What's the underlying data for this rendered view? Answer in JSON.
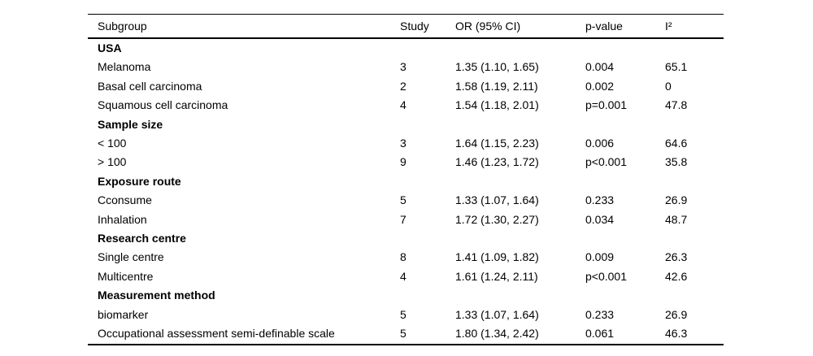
{
  "table": {
    "columns": [
      "Subgroup",
      "Study",
      "OR (95% CI)",
      "p-value",
      "I²"
    ],
    "rows": [
      {
        "style": "section",
        "cells": [
          "USA",
          "",
          "",
          "",
          ""
        ]
      },
      {
        "style": "data",
        "cells": [
          "Melanoma",
          "3",
          "1.35 (1.10, 1.65)",
          "0.004",
          "65.1"
        ]
      },
      {
        "style": "data",
        "cells": [
          "Basal cell carcinoma",
          "2",
          "1.58 (1.19, 2.11)",
          "0.002",
          "0"
        ]
      },
      {
        "style": "data",
        "cells": [
          "Squamous cell carcinoma",
          "4",
          "1.54 (1.18, 2.01)",
          "p=0.001",
          "47.8"
        ]
      },
      {
        "style": "section",
        "cells": [
          "Sample size",
          "",
          "",
          "",
          ""
        ]
      },
      {
        "style": "data",
        "cells": [
          "< 100",
          "3",
          "1.64 (1.15, 2.23)",
          "0.006",
          "64.6"
        ]
      },
      {
        "style": "data",
        "cells": [
          "> 100",
          "9",
          "1.46 (1.23, 1.72)",
          "p<0.001",
          "35.8"
        ]
      },
      {
        "style": "section",
        "cells": [
          "Exposure route",
          "",
          "",
          "",
          ""
        ]
      },
      {
        "style": "data",
        "cells": [
          "Cconsume",
          "5",
          "1.33 (1.07, 1.64)",
          "0.233",
          "26.9"
        ]
      },
      {
        "style": "data",
        "cells": [
          "Inhalation",
          "7",
          "1.72 (1.30, 2.27)",
          "0.034",
          "48.7"
        ]
      },
      {
        "style": "section",
        "cells": [
          "Research centre",
          "",
          "",
          "",
          ""
        ]
      },
      {
        "style": "data",
        "cells": [
          "Single centre",
          "8",
          "1.41 (1.09, 1.82)",
          "0.009",
          "26.3"
        ]
      },
      {
        "style": "data",
        "cells": [
          "Multicentre",
          "4",
          "1.61 (1.24, 2.11)",
          "p<0.001",
          "42.6"
        ]
      },
      {
        "style": "section",
        "cells": [
          "Measurement method",
          "",
          "",
          "",
          ""
        ]
      },
      {
        "style": "data",
        "cells": [
          "biomarker",
          "5",
          "1.33 (1.07, 1.64)",
          "0.233",
          "26.9"
        ]
      },
      {
        "style": "data",
        "cells": [
          "Occupational assessment semi-definable scale",
          "5",
          "1.80 (1.34, 2.42)",
          "0.061",
          "46.3"
        ]
      }
    ],
    "colors": {
      "text": "#000000",
      "background": "#ffffff",
      "rule": "#000000"
    }
  }
}
